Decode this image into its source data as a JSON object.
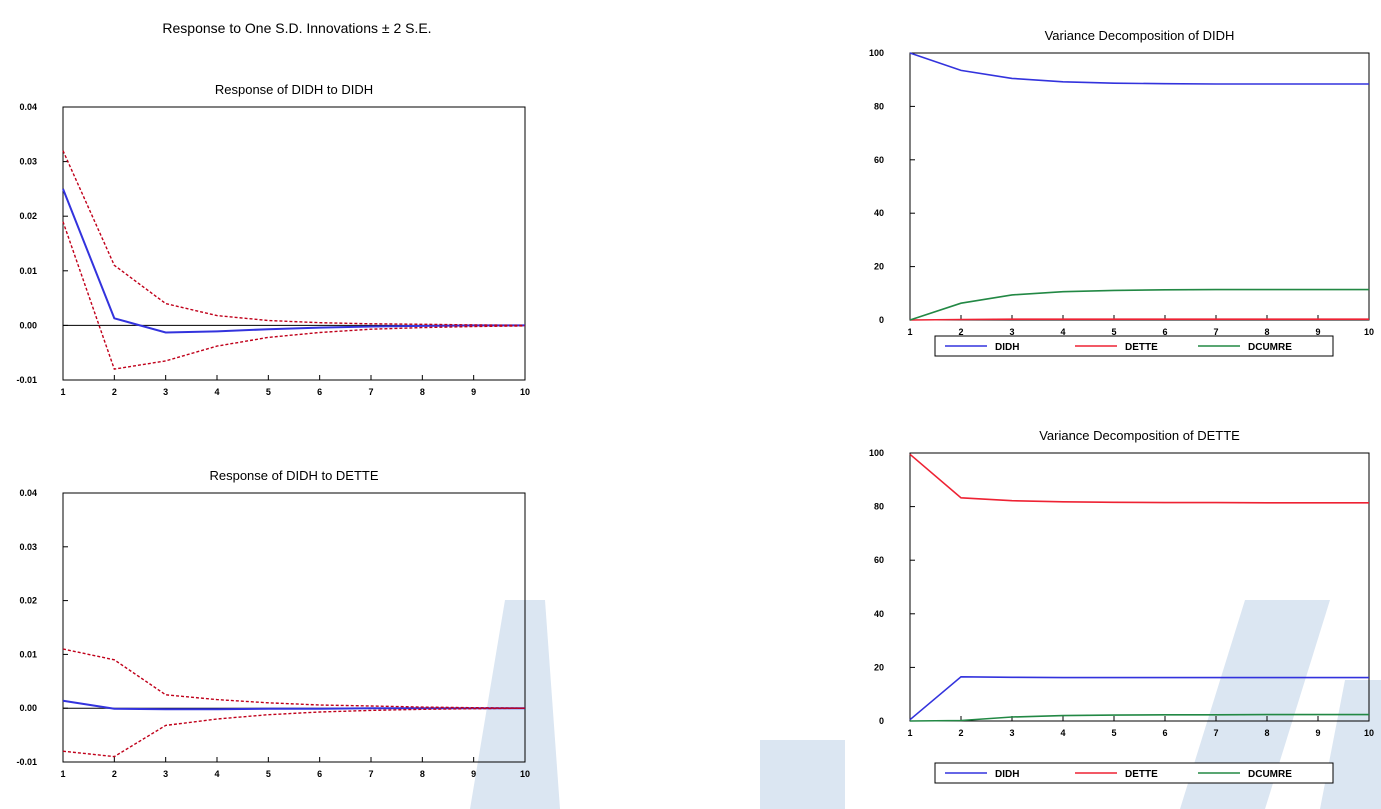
{
  "main_title": "Response to One S.D. Innovations ± 2 S.E.",
  "colors": {
    "didh": "#3333dd",
    "dette": "#ee2233",
    "dcumre": "#228844",
    "band": "#c0001a",
    "zero_line": "#000000",
    "watermark": "#dbe6f2"
  },
  "chart_data": [
    {
      "id": "irf-didh-didh",
      "type": "line",
      "title": "Response of DIDH to DIDH",
      "x": [
        1,
        2,
        3,
        4,
        5,
        6,
        7,
        8,
        9,
        10
      ],
      "xticks": [
        "1",
        "2",
        "3",
        "4",
        "5",
        "6",
        "7",
        "8",
        "9",
        "10"
      ],
      "ylim": [
        -0.01,
        0.04
      ],
      "yticks": [
        "0.04",
        "0.03",
        "0.02",
        "0.01",
        "0.00",
        "-0.01"
      ],
      "series": [
        {
          "role": "response",
          "values": [
            0.025,
            0.0013,
            -0.0013,
            -0.0011,
            -0.0007,
            -0.0004,
            -0.0002,
            -0.0001,
            0.0,
            0.0
          ]
        },
        {
          "role": "upper",
          "values": [
            0.032,
            0.011,
            0.004,
            0.0018,
            0.0009,
            0.0005,
            0.0003,
            0.0002,
            0.0001,
            0.0
          ]
        },
        {
          "role": "lower",
          "values": [
            0.019,
            -0.008,
            -0.0065,
            -0.0038,
            -0.0022,
            -0.0013,
            -0.0007,
            -0.0004,
            -0.0002,
            -0.0001
          ]
        }
      ]
    },
    {
      "id": "irf-didh-dette",
      "type": "line",
      "title": "Response of DIDH to DETTE",
      "x": [
        1,
        2,
        3,
        4,
        5,
        6,
        7,
        8,
        9,
        10
      ],
      "xticks": [
        "1",
        "2",
        "3",
        "4",
        "5",
        "6",
        "7",
        "8",
        "9",
        "10"
      ],
      "ylim": [
        -0.01,
        0.04
      ],
      "yticks": [
        "0.04",
        "0.03",
        "0.02",
        "0.01",
        "0.00",
        "-0.01"
      ],
      "series": [
        {
          "role": "response",
          "values": [
            0.0014,
            -0.0001,
            -0.0002,
            -0.0002,
            -0.0001,
            -0.0001,
            0.0,
            0.0,
            0.0,
            0.0
          ]
        },
        {
          "role": "upper",
          "values": [
            0.011,
            0.009,
            0.0025,
            0.0016,
            0.001,
            0.0006,
            0.0004,
            0.0002,
            0.0001,
            0.0
          ]
        },
        {
          "role": "lower",
          "values": [
            -0.008,
            -0.009,
            -0.0032,
            -0.002,
            -0.0012,
            -0.0007,
            -0.0004,
            -0.0002,
            -0.0001,
            0.0
          ]
        }
      ]
    },
    {
      "id": "vd-didh",
      "type": "line",
      "title": "Variance Decomposition of DIDH",
      "x": [
        1,
        2,
        3,
        4,
        5,
        6,
        7,
        8,
        9,
        10
      ],
      "xticks": [
        "1",
        "2",
        "3",
        "4",
        "5",
        "6",
        "7",
        "8",
        "9",
        "10"
      ],
      "ylim": [
        0,
        100
      ],
      "yticks": [
        "100",
        "80",
        "60",
        "40",
        "20",
        "0"
      ],
      "legend": [
        "DIDH",
        "DETTE",
        "DCUMRE"
      ],
      "series": [
        {
          "name": "DIDH",
          "values": [
            100,
            93.5,
            90.5,
            89.2,
            88.7,
            88.5,
            88.4,
            88.4,
            88.4,
            88.4
          ]
        },
        {
          "name": "DETTE",
          "values": [
            0,
            0.2,
            0.3,
            0.3,
            0.3,
            0.3,
            0.3,
            0.3,
            0.3,
            0.3
          ]
        },
        {
          "name": "DCUMRE",
          "values": [
            0,
            6.3,
            9.4,
            10.6,
            11.1,
            11.3,
            11.4,
            11.4,
            11.4,
            11.4
          ]
        }
      ]
    },
    {
      "id": "vd-dette",
      "type": "line",
      "title": "Variance Decomposition of DETTE",
      "x": [
        1,
        2,
        3,
        4,
        5,
        6,
        7,
        8,
        9,
        10
      ],
      "xticks": [
        "1",
        "2",
        "3",
        "4",
        "5",
        "6",
        "7",
        "8",
        "9",
        "10"
      ],
      "ylim": [
        0,
        100
      ],
      "yticks": [
        "100",
        "80",
        "60",
        "40",
        "20",
        "0"
      ],
      "legend": [
        "DIDH",
        "DETTE",
        "DCUMRE"
      ],
      "series": [
        {
          "name": "DIDH",
          "values": [
            0.5,
            16.5,
            16.3,
            16.2,
            16.2,
            16.2,
            16.2,
            16.2,
            16.2,
            16.2
          ]
        },
        {
          "name": "DETTE",
          "values": [
            99.5,
            83.3,
            82.2,
            81.8,
            81.6,
            81.5,
            81.5,
            81.4,
            81.4,
            81.4
          ]
        },
        {
          "name": "DCUMRE",
          "values": [
            0,
            0.2,
            1.5,
            2.0,
            2.2,
            2.3,
            2.3,
            2.4,
            2.4,
            2.4
          ]
        }
      ]
    }
  ]
}
